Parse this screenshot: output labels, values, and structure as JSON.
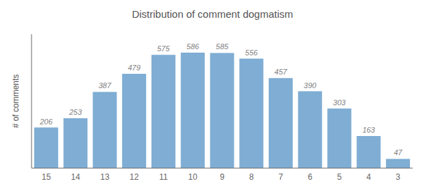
{
  "chart_data": {
    "type": "bar",
    "title": "Distribution of comment dogmatism",
    "ylabel": "# of comments",
    "categories": [
      15,
      14,
      13,
      12,
      11,
      10,
      9,
      8,
      7,
      6,
      5,
      4,
      3
    ],
    "values": [
      206,
      253,
      387,
      479,
      575,
      586,
      585,
      556,
      457,
      390,
      303,
      163,
      47
    ],
    "color": "#7fadd4",
    "ylim": [
      0,
      680
    ],
    "grid": false,
    "data_labels": true,
    "tick_labels": "x"
  }
}
